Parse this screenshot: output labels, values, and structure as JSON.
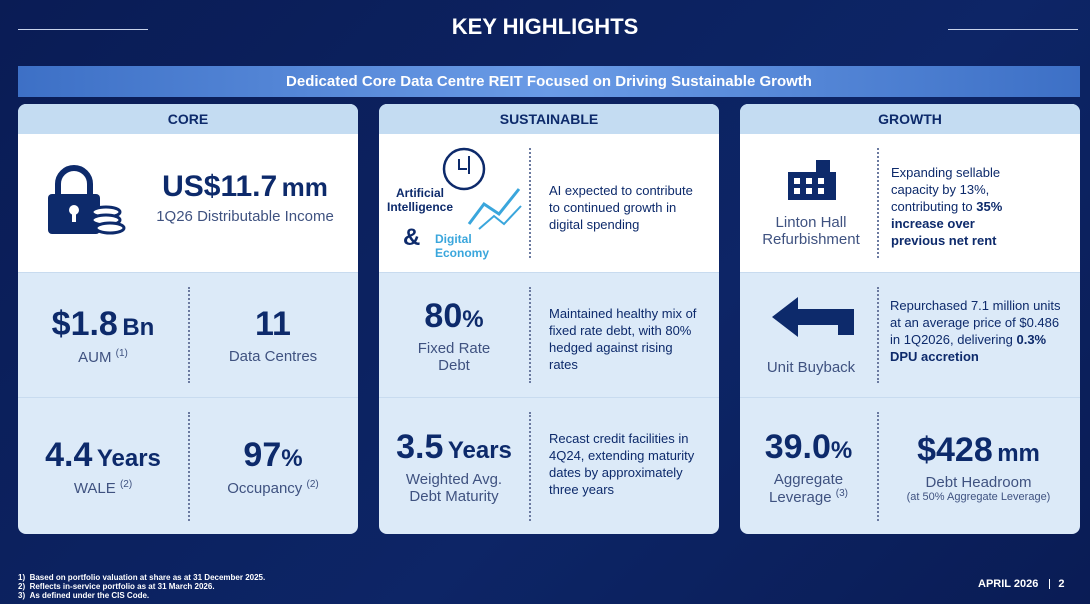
{
  "header": {
    "title": "KEY HIGHLIGHTS",
    "banner": "Dedicated Core Data Centre REIT Focused on Driving Sustainable Growth"
  },
  "columns": [
    {
      "heading": "CORE",
      "top": {
        "value": "US$11.7",
        "unit": "mm",
        "label": "1Q26 Distributable Income"
      },
      "rows": [
        [
          {
            "value": "$1.8",
            "unit": "Bn",
            "label": "AUM",
            "note": "(1)"
          },
          {
            "value": "11",
            "label": "Data Centres"
          }
        ],
        [
          {
            "value": "4.4",
            "unit": "Years",
            "label": "WALE",
            "note": "(2)"
          },
          {
            "value": "97",
            "unit": "%",
            "label": "Occupancy",
            "note": "(2)"
          }
        ]
      ]
    },
    {
      "heading": "SUSTAINABLE",
      "top": {
        "label_a": "Artificial Intelligence",
        "amp": "&",
        "label_b": "Digital Economy",
        "desc": "AI expected to contribute to continued growth in digital spending"
      },
      "rows": [
        {
          "value": "80",
          "unit": "%",
          "label": "Fixed Rate Debt",
          "desc": "Maintained healthy mix of fixed rate debt, with 80% hedged against rising rates"
        },
        {
          "value": "3.5",
          "unit": "Years",
          "label": "Weighted Avg. Debt Maturity",
          "desc": "Recast credit facilities in 4Q24, extending maturity dates by approximately three years"
        }
      ]
    },
    {
      "heading": "GROWTH",
      "top": {
        "label": "Linton Hall Refurbishment",
        "desc": "Expanding sellable capacity by 13%, contributing to",
        "desc_bold": "35% increase over previous net rent"
      },
      "rows": [
        {
          "label": "Unit Buyback",
          "desc": "Repurchased 7.1 million units at an average price of $0.486 in 1Q2026, delivering",
          "desc_bold": "0.3% DPU accretion"
        },
        [
          {
            "value": "39.0",
            "unit": "%",
            "label": "Aggregate Leverage",
            "note": "(3)"
          },
          {
            "value": "$428",
            "unit": "mm",
            "label": "Debt Headroom",
            "note": "(at 50% Aggregate Leverage)"
          }
        ]
      ]
    }
  ],
  "footnotes": [
    {
      "marker": "1)",
      "text": "Based on portfolio valuation at share as at 31 December 2025."
    },
    {
      "marker": "2)",
      "text": "Reflects in-service portfolio as at 31 March 2026."
    },
    {
      "marker": "3)",
      "text": "As defined under the CIS Code."
    }
  ],
  "footer": {
    "date": "APRIL 2026",
    "page": "2"
  }
}
